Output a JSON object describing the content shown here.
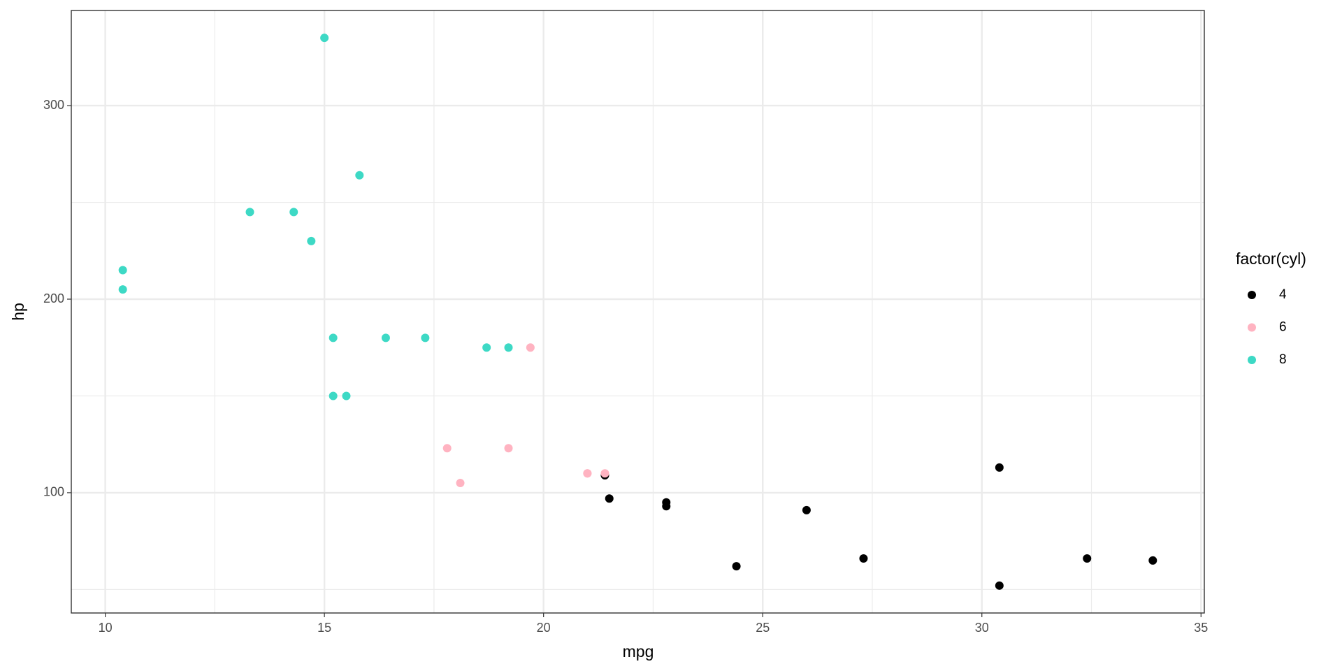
{
  "chart_data": {
    "type": "scatter",
    "x_label": "mpg",
    "y_label": "hp",
    "legend_title": "factor(cyl)",
    "legend_position": "right",
    "xlim": [
      9.225,
      35.075
    ],
    "ylim": [
      37.85,
      349.15
    ],
    "xticks": [
      10,
      15,
      20,
      25,
      30,
      35
    ],
    "yticks": [
      100,
      200,
      300
    ],
    "minor_xticks": [
      12.5,
      17.5,
      22.5,
      27.5,
      32.5
    ],
    "minor_yticks": [
      50,
      150,
      250
    ],
    "grid": true,
    "series": [
      {
        "name": "4",
        "color": "#000000",
        "x": [
          22.8,
          24.4,
          22.8,
          32.4,
          30.4,
          33.9,
          21.5,
          27.3,
          26.0,
          30.4,
          21.4
        ],
        "values": [
          93,
          62,
          95,
          66,
          52,
          65,
          97,
          66,
          91,
          113,
          109
        ]
      },
      {
        "name": "6",
        "color": "#ffb3c1",
        "x": [
          21.0,
          21.0,
          21.4,
          18.1,
          19.2,
          17.8,
          19.7
        ],
        "values": [
          110,
          110,
          110,
          105,
          123,
          123,
          175
        ]
      },
      {
        "name": "8",
        "color": "#3dd9c5",
        "x": [
          18.7,
          14.3,
          16.4,
          17.3,
          15.2,
          10.4,
          10.4,
          14.7,
          15.5,
          15.2,
          13.3,
          19.2,
          15.8,
          15.0
        ],
        "values": [
          175,
          245,
          180,
          180,
          180,
          205,
          215,
          230,
          150,
          150,
          245,
          175,
          264,
          335
        ]
      }
    ]
  }
}
